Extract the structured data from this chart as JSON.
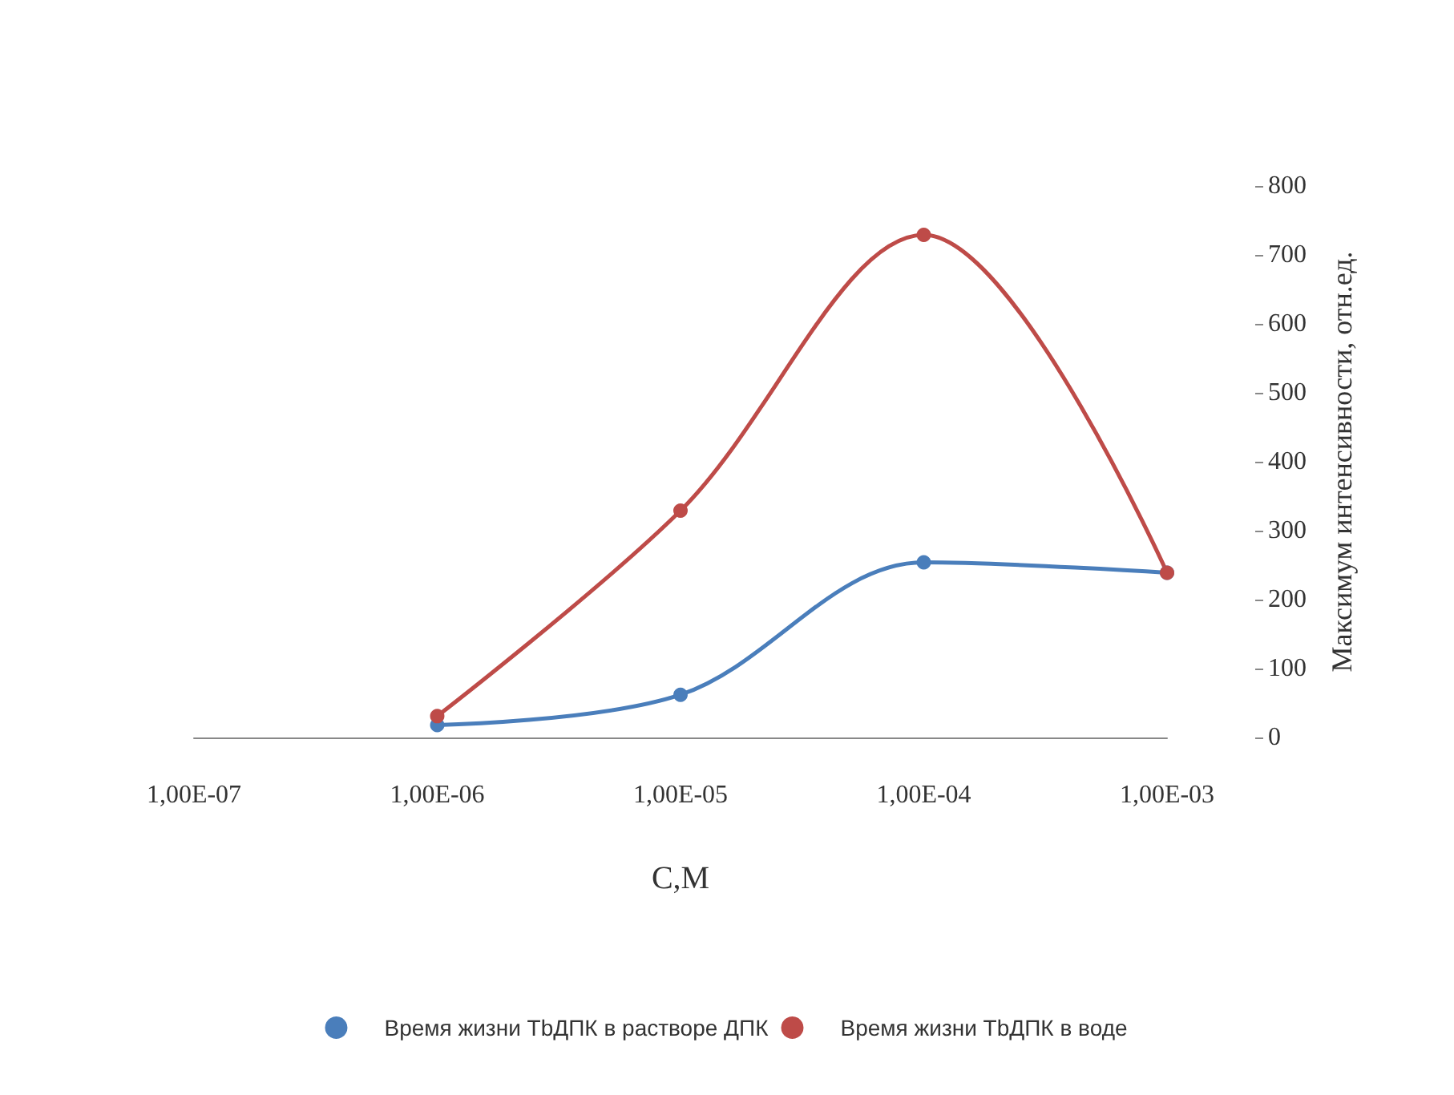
{
  "chart_data": {
    "type": "line",
    "xlabel": "C,M",
    "ylabel": "Максимум интенсивности, отн.ед.",
    "categories": [
      "1,00E-07",
      "1,00E-06",
      "1,00E-05",
      "1,00E-04",
      "1,00E-03"
    ],
    "series": [
      {
        "name": "Время жизни ТbДПК в растворе ДПК",
        "color": "#4a7ebb",
        "values": [
          null,
          18,
          62,
          254,
          239
        ]
      },
      {
        "name": "Время жизни ТbДПК в воде",
        "color": "#be4b48",
        "values": [
          null,
          31,
          329,
          729,
          239
        ]
      }
    ],
    "ylim": [
      0,
      800
    ],
    "yticks": [
      0,
      100,
      200,
      300,
      400,
      500,
      600,
      700,
      800
    ],
    "grid": false,
    "legend": "bottom",
    "marker": "circle",
    "line_style": "solid"
  }
}
